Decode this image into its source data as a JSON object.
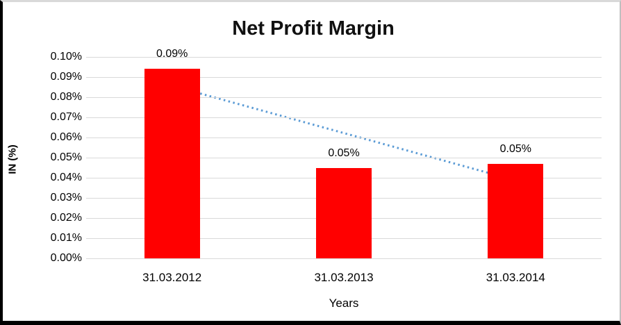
{
  "chart_data": {
    "type": "bar",
    "title": "Net Profit Margin",
    "xlabel": "Years",
    "ylabel": "IN (%)",
    "categories": [
      "31.03.2012",
      "31.03.2013",
      "31.03.2014"
    ],
    "values": [
      0.094,
      0.045,
      0.047
    ],
    "data_labels": [
      "0.09%",
      "0.05%",
      "0.05%"
    ],
    "ytick_labels": [
      "0.00%",
      "0.01%",
      "0.02%",
      "0.03%",
      "0.04%",
      "0.05%",
      "0.06%",
      "0.07%",
      "0.08%",
      "0.09%",
      "0.10%"
    ],
    "ylim": [
      0,
      0.1
    ],
    "ytick_step": 0.01,
    "legend": "none",
    "grid": "horizontal",
    "colors": {
      "bar": "#FF0000",
      "gridline": "#D9D9D9",
      "trendline": "#5B9BD5",
      "text": "#000000",
      "title": "#111111"
    },
    "trendline": {
      "type": "linear",
      "style": "dotted",
      "color": "#5B9BD5",
      "start_value": 0.0857,
      "end_value": 0.0387
    }
  }
}
